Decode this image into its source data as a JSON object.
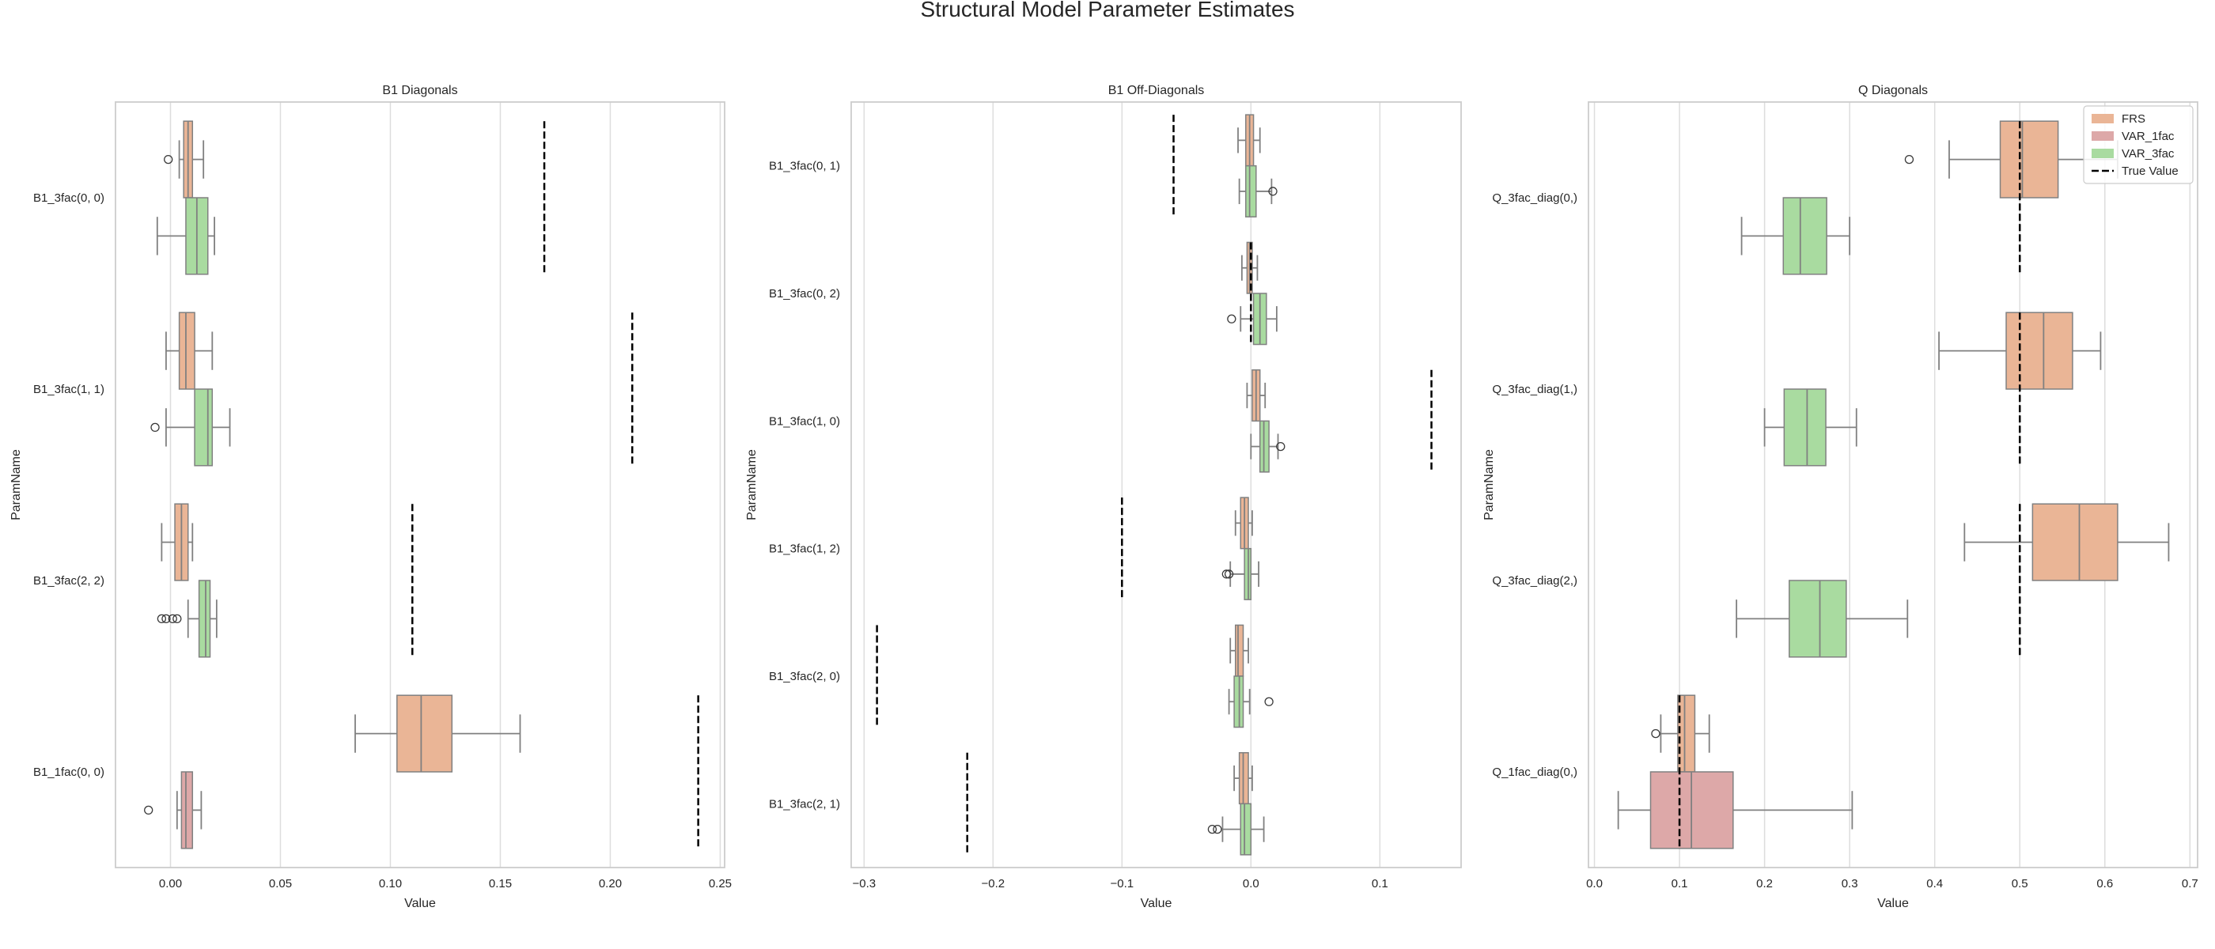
{
  "title": "Structural Model Parameter Estimates",
  "colors": {
    "FRS": "#eab596",
    "VAR_1fac": "#dda8a8",
    "VAR_3fac": "#a9dba0",
    "true_value": "#000000",
    "whisker": "#808080",
    "grid": "#dddddd",
    "spine": "#cccccc"
  },
  "legend": {
    "placement": "top-right",
    "entries": [
      {
        "key": "FRS",
        "label": "FRS",
        "kind": "patch"
      },
      {
        "key": "VAR_1fac",
        "label": "VAR_1fac",
        "kind": "patch"
      },
      {
        "key": "VAR_3fac",
        "label": "VAR_3fac",
        "kind": "patch"
      },
      {
        "key": "true_value",
        "label": "True Value",
        "kind": "dashed-line"
      }
    ]
  },
  "chart_data": [
    {
      "type": "boxplot",
      "orientation": "horizontal",
      "title": "B1 Diagonals",
      "xlabel": "Value",
      "ylabel": "ParamName",
      "xlim": [
        -0.025,
        0.252
      ],
      "xticks": [
        0.0,
        0.05,
        0.1,
        0.15,
        0.2,
        0.25
      ],
      "xtick_labels": [
        "0.00",
        "0.05",
        "0.10",
        "0.15",
        "0.20",
        "0.25"
      ],
      "grid": "x",
      "categories": [
        "B1_3fac(0, 0)",
        "B1_3fac(1, 1)",
        "B1_3fac(2, 2)",
        "B1_1fac(0, 0)"
      ],
      "series": [
        {
          "name": "FRS",
          "color_key": "FRS",
          "boxes": [
            {
              "category": 0,
              "slot": 0,
              "whislo": 0.004,
              "q1": 0.006,
              "med": 0.008,
              "q3": 0.01,
              "whishi": 0.015,
              "fliers": [
                -0.001
              ]
            },
            {
              "category": 1,
              "slot": 0,
              "whislo": -0.002,
              "q1": 0.004,
              "med": 0.007,
              "q3": 0.011,
              "whishi": 0.019,
              "fliers": []
            },
            {
              "category": 2,
              "slot": 0,
              "whislo": -0.004,
              "q1": 0.002,
              "med": 0.005,
              "q3": 0.008,
              "whishi": 0.01,
              "fliers": []
            },
            {
              "category": 3,
              "slot": 0,
              "whislo": 0.084,
              "q1": 0.103,
              "med": 0.114,
              "q3": 0.128,
              "whishi": 0.159,
              "fliers": []
            }
          ]
        },
        {
          "name": "VAR_1fac",
          "color_key": "VAR_1fac",
          "boxes": [
            {
              "category": 3,
              "slot": 1,
              "whislo": 0.003,
              "q1": 0.005,
              "med": 0.007,
              "q3": 0.01,
              "whishi": 0.014,
              "fliers": [
                -0.01
              ]
            }
          ]
        },
        {
          "name": "VAR_3fac",
          "color_key": "VAR_3fac",
          "boxes": [
            {
              "category": 0,
              "slot": 1,
              "whislo": -0.006,
              "q1": 0.007,
              "med": 0.012,
              "q3": 0.017,
              "whishi": 0.02,
              "fliers": []
            },
            {
              "category": 1,
              "slot": 1,
              "whislo": -0.002,
              "q1": 0.011,
              "med": 0.017,
              "q3": 0.019,
              "whishi": 0.027,
              "fliers": [
                -0.007
              ]
            },
            {
              "category": 2,
              "slot": 1,
              "whislo": 0.008,
              "q1": 0.013,
              "med": 0.016,
              "q3": 0.018,
              "whishi": 0.021,
              "fliers": [
                -0.004,
                -0.002,
                0.001,
                0.003
              ]
            }
          ]
        }
      ],
      "true_values": [
        {
          "category": 0,
          "value": 0.17
        },
        {
          "category": 1,
          "value": 0.21
        },
        {
          "category": 2,
          "value": 0.11
        },
        {
          "category": 3,
          "value": 0.24
        }
      ]
    },
    {
      "type": "boxplot",
      "orientation": "horizontal",
      "title": "B1 Off-Diagonals",
      "xlabel": "Value",
      "ylabel": "ParamName",
      "xlim": [
        -0.31,
        0.163
      ],
      "xticks": [
        -0.3,
        -0.2,
        -0.1,
        0.0,
        0.1
      ],
      "xtick_labels": [
        "−0.3",
        "−0.2",
        "−0.1",
        "0.0",
        "0.1"
      ],
      "grid": "x",
      "categories": [
        "B1_3fac(0, 1)",
        "B1_3fac(0, 2)",
        "B1_3fac(1, 0)",
        "B1_3fac(1, 2)",
        "B1_3fac(2, 0)",
        "B1_3fac(2, 1)"
      ],
      "series": [
        {
          "name": "FRS",
          "color_key": "FRS",
          "boxes": [
            {
              "category": 0,
              "slot": 0,
              "whislo": -0.01,
              "q1": -0.004,
              "med": -0.001,
              "q3": 0.002,
              "whishi": 0.007,
              "fliers": []
            },
            {
              "category": 1,
              "slot": 0,
              "whislo": -0.007,
              "q1": -0.003,
              "med": -0.001,
              "q3": 0.001,
              "whishi": 0.005,
              "fliers": []
            },
            {
              "category": 2,
              "slot": 0,
              "whislo": -0.003,
              "q1": 0.001,
              "med": 0.004,
              "q3": 0.007,
              "whishi": 0.011,
              "fliers": []
            },
            {
              "category": 3,
              "slot": 0,
              "whislo": -0.012,
              "q1": -0.008,
              "med": -0.005,
              "q3": -0.002,
              "whishi": 0.001,
              "fliers": []
            },
            {
              "category": 4,
              "slot": 0,
              "whislo": -0.016,
              "q1": -0.012,
              "med": -0.01,
              "q3": -0.006,
              "whishi": -0.002,
              "fliers": []
            },
            {
              "category": 5,
              "slot": 0,
              "whislo": -0.013,
              "q1": -0.009,
              "med": -0.006,
              "q3": -0.002,
              "whishi": 0.001,
              "fliers": []
            }
          ]
        },
        {
          "name": "VAR_3fac",
          "color_key": "VAR_3fac",
          "boxes": [
            {
              "category": 0,
              "slot": 1,
              "whislo": -0.009,
              "q1": -0.004,
              "med": -0.001,
              "q3": 0.004,
              "whishi": 0.016,
              "fliers": [
                0.017
              ]
            },
            {
              "category": 1,
              "slot": 1,
              "whislo": -0.008,
              "q1": 0.002,
              "med": 0.007,
              "q3": 0.012,
              "whishi": 0.02,
              "fliers": [
                -0.015
              ]
            },
            {
              "category": 2,
              "slot": 1,
              "whislo": 0.0,
              "q1": 0.007,
              "med": 0.01,
              "q3": 0.014,
              "whishi": 0.021,
              "fliers": [
                0.023
              ]
            },
            {
              "category": 3,
              "slot": 1,
              "whislo": -0.016,
              "q1": -0.005,
              "med": -0.002,
              "q3": 0.0,
              "whishi": 0.006,
              "fliers": [
                -0.019,
                -0.017
              ]
            },
            {
              "category": 4,
              "slot": 1,
              "whislo": -0.017,
              "q1": -0.013,
              "med": -0.009,
              "q3": -0.006,
              "whishi": -0.001,
              "fliers": [
                0.014
              ]
            },
            {
              "category": 5,
              "slot": 1,
              "whislo": -0.022,
              "q1": -0.008,
              "med": -0.005,
              "q3": 0.0,
              "whishi": 0.01,
              "fliers": [
                -0.03,
                -0.026
              ]
            }
          ]
        }
      ],
      "true_values": [
        {
          "category": 0,
          "value": -0.06
        },
        {
          "category": 1,
          "value": 0.0
        },
        {
          "category": 2,
          "value": 0.14
        },
        {
          "category": 3,
          "value": -0.1
        },
        {
          "category": 4,
          "value": -0.29
        },
        {
          "category": 5,
          "value": -0.22
        }
      ]
    },
    {
      "type": "boxplot",
      "orientation": "horizontal",
      "title": "Q Diagonals",
      "xlabel": "Value",
      "ylabel": "ParamName",
      "xlim": [
        -0.007,
        0.709
      ],
      "xticks": [
        0.0,
        0.1,
        0.2,
        0.3,
        0.4,
        0.5,
        0.6,
        0.7
      ],
      "xtick_labels": [
        "0.0",
        "0.1",
        "0.2",
        "0.3",
        "0.4",
        "0.5",
        "0.6",
        "0.7"
      ],
      "grid": "x",
      "categories": [
        "Q_3fac_diag(0,)",
        "Q_3fac_diag(1,)",
        "Q_3fac_diag(2,)",
        "Q_1fac_diag(0,)"
      ],
      "series": [
        {
          "name": "FRS",
          "color_key": "FRS",
          "boxes": [
            {
              "category": 0,
              "slot": 0,
              "whislo": 0.417,
              "q1": 0.477,
              "med": 0.503,
              "q3": 0.545,
              "whishi": 0.615,
              "fliers": [
                0.37
              ]
            },
            {
              "category": 1,
              "slot": 0,
              "whislo": 0.405,
              "q1": 0.484,
              "med": 0.528,
              "q3": 0.562,
              "whishi": 0.595,
              "fliers": []
            },
            {
              "category": 2,
              "slot": 0,
              "whislo": 0.435,
              "q1": 0.515,
              "med": 0.57,
              "q3": 0.615,
              "whishi": 0.675,
              "fliers": []
            },
            {
              "category": 3,
              "slot": 0,
              "whislo": 0.078,
              "q1": 0.098,
              "med": 0.106,
              "q3": 0.118,
              "whishi": 0.135,
              "fliers": [
                0.072
              ]
            }
          ]
        },
        {
          "name": "VAR_1fac",
          "color_key": "VAR_1fac",
          "boxes": [
            {
              "category": 3,
              "slot": 1,
              "whislo": 0.028,
              "q1": 0.066,
              "med": 0.114,
              "q3": 0.163,
              "whishi": 0.303,
              "fliers": []
            }
          ]
        },
        {
          "name": "VAR_3fac",
          "color_key": "VAR_3fac",
          "boxes": [
            {
              "category": 0,
              "slot": 1,
              "whislo": 0.173,
              "q1": 0.222,
              "med": 0.242,
              "q3": 0.273,
              "whishi": 0.3,
              "fliers": []
            },
            {
              "category": 1,
              "slot": 1,
              "whislo": 0.2,
              "q1": 0.223,
              "med": 0.25,
              "q3": 0.272,
              "whishi": 0.308,
              "fliers": []
            },
            {
              "category": 2,
              "slot": 1,
              "whislo": 0.167,
              "q1": 0.229,
              "med": 0.265,
              "q3": 0.296,
              "whishi": 0.368,
              "fliers": []
            }
          ]
        }
      ],
      "true_values": [
        {
          "category": 0,
          "value": 0.5
        },
        {
          "category": 1,
          "value": 0.5
        },
        {
          "category": 2,
          "value": 0.5
        },
        {
          "category": 3,
          "value": 0.1
        }
      ]
    }
  ]
}
